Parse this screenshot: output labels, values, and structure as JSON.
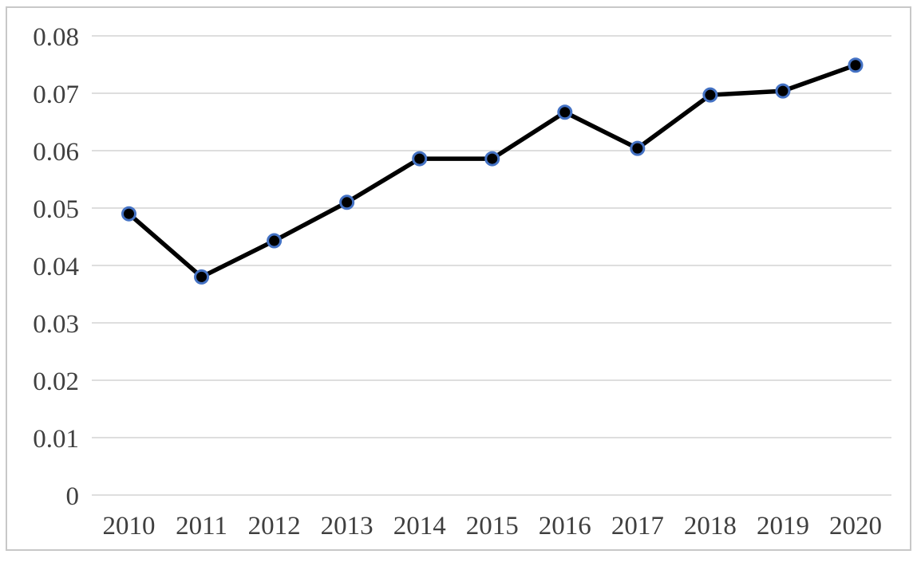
{
  "chart_data": {
    "type": "line",
    "title": "",
    "xlabel": "",
    "ylabel": "",
    "categories": [
      "2010",
      "2011",
      "2012",
      "2013",
      "2014",
      "2015",
      "2016",
      "2017",
      "2018",
      "2019",
      "2020"
    ],
    "series": [
      {
        "name": "series-1",
        "values": [
          0.049,
          0.038,
          0.0443,
          0.051,
          0.0586,
          0.0586,
          0.0667,
          0.0604,
          0.0697,
          0.0704,
          0.0749
        ]
      }
    ],
    "ylim": [
      0,
      0.08
    ],
    "ytick_interval": 0.01,
    "ytick_labels": [
      "0",
      "0.01",
      "0.02",
      "0.03",
      "0.04",
      "0.05",
      "0.06",
      "0.07",
      "0.08"
    ],
    "grid": true,
    "legend": "none",
    "marker": "circle",
    "colors": {
      "line": "#000000",
      "marker_fill": "#000000",
      "marker_ring": "#4472C4",
      "gridline": "#D9D9D9",
      "tick_label": "#3F3F3F",
      "frame": "#C8C8C8",
      "background": "#FFFFFF"
    }
  }
}
